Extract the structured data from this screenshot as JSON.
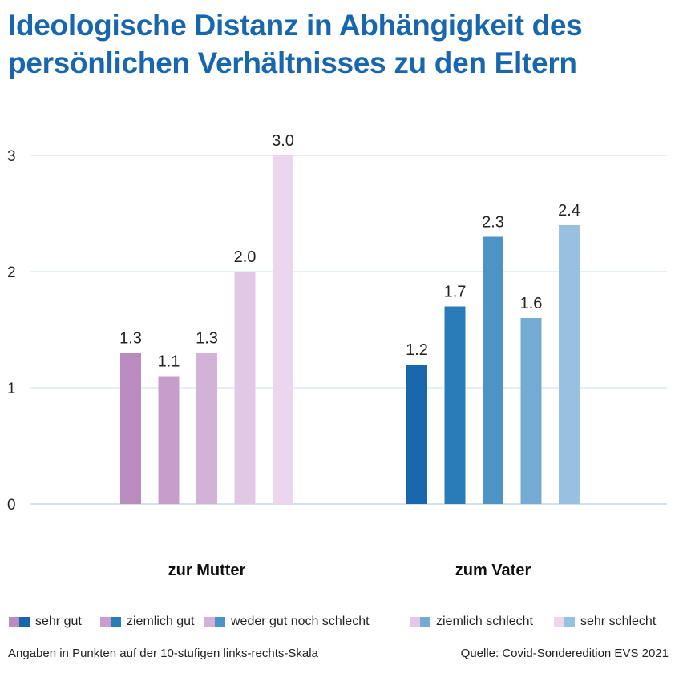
{
  "title": "Ideologische Distanz in Abhängigkeit des persönlichen Verhältnisses zu den Eltern",
  "chart_data": {
    "type": "bar",
    "categories": [
      "zur Mutter",
      "zum Vater"
    ],
    "series": [
      {
        "name": "sehr gut",
        "values": [
          1.3,
          1.2
        ],
        "colors": [
          "#b98bbf",
          "#1866ae"
        ]
      },
      {
        "name": "ziemlich gut",
        "values": [
          1.1,
          1.7
        ],
        "colors": [
          "#c69dcb",
          "#2a7cb8"
        ]
      },
      {
        "name": "weder gut noch schlecht",
        "values": [
          1.3,
          2.3
        ],
        "colors": [
          "#d2b3d7",
          "#4d93c6"
        ]
      },
      {
        "name": "ziemlich schlecht",
        "values": [
          2.0,
          1.6
        ],
        "colors": [
          "#e2c8e6",
          "#75aad3"
        ]
      },
      {
        "name": "sehr schlecht",
        "values": [
          3.0,
          2.4
        ],
        "colors": [
          "#ecd6ee",
          "#97c1de"
        ]
      }
    ],
    "value_labels": [
      [
        "1.3",
        "1.1",
        "1.3",
        "2.0",
        "3.0"
      ],
      [
        "1.2",
        "1.7",
        "2.3",
        "1.6",
        "2.4"
      ]
    ],
    "yticks": [
      "0",
      "1",
      "2",
      "3"
    ],
    "ylim": [
      0,
      3
    ],
    "grid": true,
    "legend_position": "bottom",
    "gridColor": "#d5e5ee",
    "axisColor": "#b9d2e1"
  },
  "footer": {
    "note": "Angaben in Punkten auf der 10-stufigen links-rechts-Skala",
    "source": "Quelle: Covid-Sonderedition EVS 2021"
  }
}
